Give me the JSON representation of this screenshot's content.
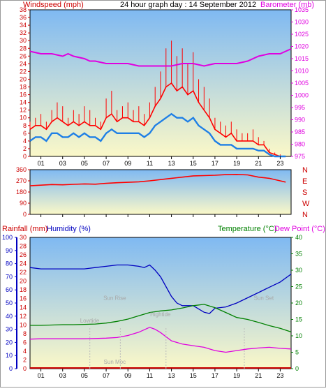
{
  "title": "24 hour graph day : 14 September 2012",
  "x_ticks": [
    "01",
    "03",
    "05",
    "07",
    "09",
    "11",
    "13",
    "15",
    "17",
    "19",
    "21",
    "23"
  ],
  "colors": {
    "wind": "#ff0000",
    "gust": "#ff0000",
    "avg": "#1e7fe6",
    "baro": "#e000e0",
    "dir": "#ff0000",
    "humidity": "#0000c0",
    "temperature": "#008000",
    "dewpoint": "#e000e0",
    "rainfall": "#cc0000",
    "bg_top": "#7fb9f2",
    "bg_bottom": "#fbf8c8"
  },
  "chart_data": [
    {
      "type": "line",
      "name": "wind-baro",
      "left_axis_label": "Windspeed (mph)",
      "right_axis_label": "Barometer (mb)",
      "y_left_ticks": [
        "0",
        "2",
        "4",
        "6",
        "8",
        "10",
        "12",
        "14",
        "16",
        "18",
        "20",
        "22",
        "24",
        "26",
        "28",
        "30",
        "32",
        "34",
        "36",
        "38"
      ],
      "y_right_ticks": [
        "975",
        "980",
        "985",
        "990",
        "995",
        "1000",
        "1005",
        "1010",
        "1015",
        "1020",
        "1025",
        "1030",
        "1035"
      ],
      "ylim_left": [
        0,
        38
      ],
      "ylim_right": [
        975,
        1035
      ],
      "xlim": [
        0,
        24
      ],
      "series": [
        {
          "role": "gust",
          "x": [
            0,
            0.5,
            1,
            1.5,
            2,
            2.5,
            3,
            3.5,
            4,
            4.5,
            5,
            5.5,
            6,
            6.5,
            7,
            7.5,
            8,
            8.5,
            9,
            9.5,
            10,
            10.5,
            11,
            11.5,
            12,
            12.5,
            13,
            13.5,
            14,
            14.5,
            15,
            15.5,
            16,
            16.5,
            17,
            17.5,
            18,
            18.5,
            19,
            19.5,
            20,
            20.5,
            21,
            21.5,
            22,
            22.5,
            23,
            23.5
          ],
          "values": [
            9,
            10,
            11,
            9,
            12,
            14,
            13,
            10,
            12,
            11,
            13,
            12,
            10,
            9,
            15,
            17,
            12,
            13,
            14,
            12,
            13,
            11,
            14,
            18,
            22,
            28,
            30,
            26,
            28,
            24,
            27,
            20,
            18,
            15,
            10,
            9,
            8,
            9,
            7,
            6,
            6,
            7,
            5,
            4,
            2,
            1,
            0.5,
            0
          ]
        },
        {
          "role": "wind",
          "x": [
            0,
            0.5,
            1,
            1.5,
            2,
            2.5,
            3,
            3.5,
            4,
            4.5,
            5,
            5.5,
            6,
            6.5,
            7,
            7.5,
            8,
            8.5,
            9,
            9.5,
            10,
            10.5,
            11,
            11.5,
            12,
            12.5,
            13,
            13.5,
            14,
            14.5,
            15,
            15.5,
            16,
            16.5,
            17,
            17.5,
            18,
            18.5,
            19,
            19.5,
            20,
            20.5,
            21,
            21.5,
            22,
            22.5,
            23,
            23.5
          ],
          "values": [
            7,
            8,
            8,
            7,
            9,
            10,
            9,
            8,
            9,
            8,
            9,
            8,
            8,
            7,
            10,
            11,
            9,
            10,
            10,
            9,
            9,
            8,
            10,
            13,
            15,
            18,
            19,
            17,
            18,
            16,
            17,
            14,
            12,
            10,
            7,
            6,
            5,
            6,
            4,
            4,
            4,
            4,
            3,
            3,
            1,
            0.5,
            0,
            0
          ]
        },
        {
          "role": "avg",
          "x": [
            0,
            0.5,
            1,
            1.5,
            2,
            2.5,
            3,
            3.5,
            4,
            4.5,
            5,
            5.5,
            6,
            6.5,
            7,
            7.5,
            8,
            8.5,
            9,
            9.5,
            10,
            10.5,
            11,
            11.5,
            12,
            12.5,
            13,
            13.5,
            14,
            14.5,
            15,
            15.5,
            16,
            16.5,
            17,
            17.5,
            18,
            18.5,
            19,
            19.5,
            20,
            20.5,
            21,
            21.5,
            22,
            22.5,
            23,
            23.5
          ],
          "values": [
            4,
            5,
            5,
            4,
            6,
            6,
            5,
            5,
            6,
            5,
            6,
            5,
            5,
            4,
            6,
            7,
            6,
            6,
            6,
            6,
            6,
            5,
            6,
            8,
            9,
            10,
            11,
            10,
            10,
            9,
            10,
            8,
            7,
            6,
            4,
            3,
            3,
            3,
            2,
            2,
            2,
            2,
            1.5,
            1.5,
            0.5,
            0,
            0,
            0
          ]
        },
        {
          "role": "baro",
          "x": [
            0,
            1,
            2,
            3,
            3.5,
            4,
            5,
            5.5,
            6,
            7,
            8,
            9,
            10,
            11,
            12,
            13,
            14,
            15,
            16,
            17,
            18,
            19,
            20,
            21,
            22,
            23,
            23.5,
            24
          ],
          "values": [
            1018,
            1017,
            1017,
            1016,
            1017,
            1016,
            1015,
            1014,
            1014,
            1013,
            1013,
            1013,
            1012,
            1012,
            1012,
            1012,
            1013,
            1013,
            1012,
            1013,
            1013,
            1013,
            1014,
            1016,
            1017,
            1017,
            1018,
            1019
          ]
        }
      ]
    },
    {
      "type": "line",
      "name": "wind-direction",
      "y_left_ticks": [
        "0",
        "90",
        "180",
        "270",
        "360"
      ],
      "y_right_ticks": [
        "N",
        "W",
        "S",
        "E",
        "N"
      ],
      "ylim": [
        0,
        360
      ],
      "xlim": [
        0,
        24
      ],
      "series": [
        {
          "role": "dir",
          "x": [
            0,
            1,
            2,
            3,
            4,
            5,
            6,
            7,
            8,
            9,
            10,
            11,
            12,
            13,
            14,
            15,
            16,
            17,
            18,
            19,
            20,
            21,
            22,
            23,
            23.5
          ],
          "values": [
            230,
            235,
            240,
            238,
            242,
            245,
            243,
            250,
            255,
            258,
            262,
            270,
            280,
            290,
            300,
            310,
            312,
            315,
            320,
            322,
            318,
            300,
            290,
            270,
            260
          ]
        }
      ]
    },
    {
      "type": "line",
      "name": "temp-hum",
      "left_axis_label_rain": "Rainfall (mm)",
      "left_axis_label_hum": "Humidity (%)",
      "right_axis_label_temp": "Temperature (°C)",
      "right_axis_label_dew": "Dew Point (°C)",
      "y_rain_ticks": [
        "0",
        "2",
        "4",
        "6",
        "8",
        "10",
        "12",
        "14",
        "16",
        "18",
        "20",
        "22",
        "24",
        "26",
        "28",
        "30"
      ],
      "y_hum_ticks": [
        "0",
        "10",
        "20",
        "30",
        "40",
        "50",
        "60",
        "70",
        "80",
        "90",
        "100"
      ],
      "y_temp_ticks": [
        "0",
        "5",
        "10",
        "15",
        "20",
        "25",
        "30",
        "35",
        "40"
      ],
      "ylim_hum": [
        0,
        100
      ],
      "ylim_temp": [
        0,
        40
      ],
      "xlim": [
        0,
        24
      ],
      "annotations": [
        "Lowtide",
        "Sun Rise",
        "Hightide",
        "Sun Set",
        "Sun Moc"
      ],
      "series": [
        {
          "role": "humidity",
          "x": [
            0,
            1,
            2,
            3,
            4,
            5,
            6,
            7,
            8,
            9,
            10,
            10.5,
            11,
            11.5,
            12,
            13,
            13.5,
            14,
            15,
            16,
            16.5,
            17,
            18,
            19,
            20,
            21,
            22,
            23,
            24
          ],
          "values": [
            77,
            76,
            76,
            76,
            76,
            76,
            77,
            78,
            79,
            79,
            78,
            77,
            79,
            75,
            70,
            55,
            50,
            48,
            48,
            43,
            42,
            46,
            47,
            50,
            54,
            58,
            62,
            66,
            72
          ]
        },
        {
          "role": "temperature",
          "x": [
            0,
            1,
            2,
            3,
            4,
            5,
            6,
            7,
            8,
            9,
            10,
            11,
            12,
            13,
            14,
            15,
            16,
            17,
            18,
            19,
            20,
            21,
            22,
            23,
            24
          ],
          "values": [
            13.2,
            13.2,
            13.3,
            13.4,
            13.4,
            13.5,
            13.6,
            13.9,
            14.4,
            15.1,
            16.1,
            17.1,
            17.6,
            17.9,
            18.5,
            19.2,
            19.6,
            18.6,
            17.1,
            15.6,
            15.0,
            14.1,
            13.1,
            12.3,
            11.2
          ]
        },
        {
          "role": "dewpoint",
          "x": [
            0,
            1,
            2,
            3,
            4,
            5,
            6,
            7,
            8,
            9,
            10,
            11,
            11.5,
            12,
            13,
            14,
            15,
            16,
            17,
            18,
            19,
            20,
            21,
            22,
            23,
            24
          ],
          "values": [
            9.0,
            9.1,
            9.1,
            9.1,
            9.1,
            9.1,
            9.2,
            9.3,
            9.5,
            10.1,
            11.1,
            12.6,
            12.0,
            11.0,
            8.5,
            7.5,
            7.0,
            6.5,
            5.5,
            5.0,
            5.5,
            6.0,
            6.3,
            6.5,
            6.2,
            6.0
          ]
        },
        {
          "role": "rainfall",
          "x": [
            0,
            24
          ],
          "values": [
            0,
            0
          ]
        }
      ]
    }
  ]
}
